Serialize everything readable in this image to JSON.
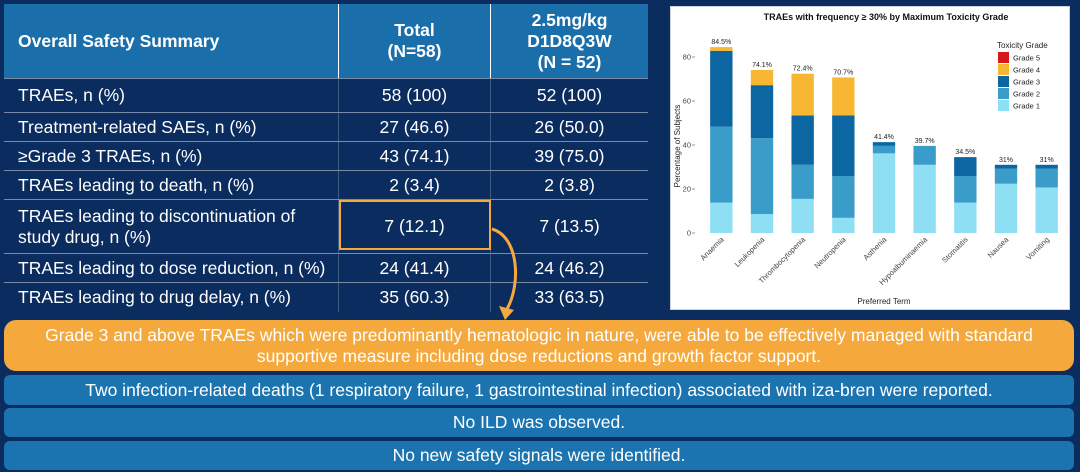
{
  "table": {
    "header": {
      "title": "Overall Safety Summary",
      "total_lines": [
        "Total",
        "(N=58)"
      ],
      "dose_lines": [
        "2.5mg/kg",
        "D1D8Q3W",
        "(N = 52)"
      ]
    },
    "rows": [
      {
        "label": "TRAEs, n (%)",
        "total": "58 (100)",
        "dose": "52 (100)"
      },
      {
        "label": "Treatment-related SAEs, n (%)",
        "total": "27 (46.6)",
        "dose": "26 (50.0)"
      },
      {
        "label": "≥Grade 3 TRAEs, n (%)",
        "total": "43 (74.1)",
        "dose": "39 (75.0)"
      },
      {
        "label": "TRAEs leading to death, n (%)",
        "total": "2 (3.4)",
        "dose": "2 (3.8)"
      },
      {
        "label": "TRAEs leading to discontinuation of study drug, n (%)",
        "total": "7 (12.1)",
        "dose": "7 (13.5)"
      },
      {
        "label": "TRAEs leading to dose reduction, n (%)",
        "total": "24 (41.4)",
        "dose": "24 (46.2)"
      },
      {
        "label": "TRAEs leading to drug delay, n (%)",
        "total": "35 (60.3)",
        "dose": "33 (63.5)"
      }
    ]
  },
  "chart_data": {
    "type": "bar",
    "stacked": true,
    "title": "TRAEs with frequency ≥ 30% by Maximum Toxicity Grade",
    "xlabel": "Preferred Term",
    "ylabel": "Percentage of Subjects",
    "ylim": [
      0,
      88
    ],
    "yticks": [
      0,
      20,
      40,
      60,
      80
    ],
    "categories": [
      "Anaemia",
      "Leukopenia",
      "Thrombocytopenia",
      "Neutropenia",
      "Asthenia",
      "Hypoalbuminaemia",
      "Stomatitis",
      "Nausea",
      "Vomiting"
    ],
    "totals_labels": [
      "84.5%",
      "74.1%",
      "72.4%",
      "70.7%",
      "41.4%",
      "39.7%",
      "34.5%",
      "31%",
      "31%"
    ],
    "legend_title": "Toxicity Grade",
    "legend_position": "top-right",
    "series": [
      {
        "name": "Grade 5",
        "color": "#d7191c",
        "values": [
          0,
          0,
          0,
          0,
          0,
          0,
          0,
          0,
          0
        ]
      },
      {
        "name": "Grade 4",
        "color": "#f7b733",
        "values": [
          1.7,
          6.9,
          19.0,
          17.2,
          0,
          0,
          0,
          0,
          0
        ]
      },
      {
        "name": "Grade 3",
        "color": "#0c66a2",
        "values": [
          34.5,
          24.1,
          22.4,
          27.6,
          1.7,
          0,
          8.6,
          1.7,
          1.7
        ]
      },
      {
        "name": "Grade 2",
        "color": "#3a9dc9",
        "values": [
          34.5,
          34.5,
          15.5,
          19.0,
          3.4,
          8.6,
          12.1,
          6.9,
          8.6
        ]
      },
      {
        "name": "Grade 1",
        "color": "#8fdff4",
        "values": [
          13.8,
          8.6,
          15.5,
          6.9,
          36.2,
          31.0,
          13.8,
          22.4,
          20.7
        ]
      }
    ]
  },
  "callouts": {
    "highlight": "Grade 3 and above TRAEs which were predominantly hematologic in nature, were able to be effectively managed with standard supportive measure including dose reductions and growth factor support.",
    "infection_deaths": "Two infection-related deaths (1 respiratory failure, 1 gastrointestinal infection) associated with iza-bren were reported.",
    "ild": "No ILD was observed.",
    "safety_signals": "No new safety signals were identified."
  },
  "colors": {
    "background": "#0b2c5e",
    "header_blue": "#1a6fab",
    "callout_blue": "#1b74af",
    "accent_orange": "#f5a93c"
  }
}
